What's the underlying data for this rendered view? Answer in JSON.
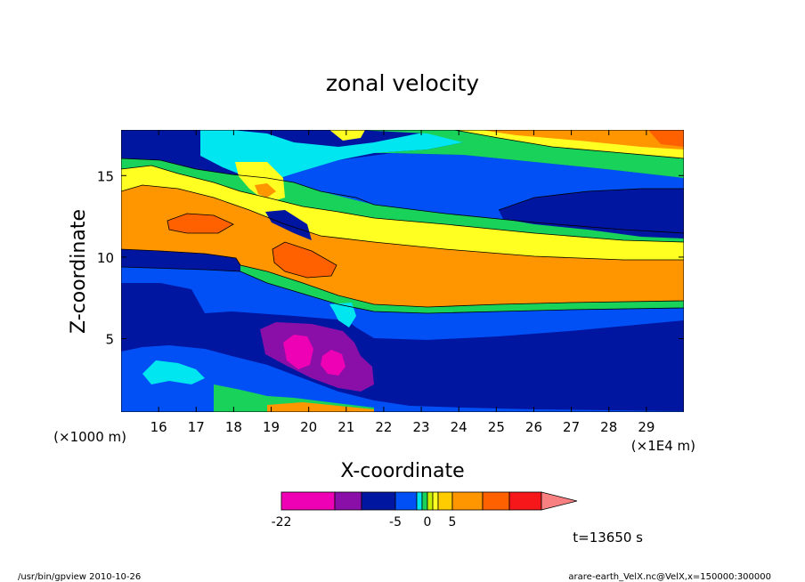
{
  "chart_data": {
    "type": "heatmap",
    "title": "zonal velocity",
    "xlabel": "X-coordinate",
    "ylabel": "Z-coordinate",
    "x_unit_label": "(×1E4 m)",
    "y_unit_label": "(×1000 m)",
    "xlim": [
      15.0,
      30.0
    ],
    "ylim": [
      0.5,
      17.8
    ],
    "x_ticks": [
      "16",
      "17",
      "18",
      "19",
      "20",
      "21",
      "22",
      "23",
      "24",
      "25",
      "26",
      "27",
      "28",
      "29"
    ],
    "y_ticks": [
      "5",
      "10",
      "15"
    ],
    "colorbar": {
      "levels": [
        -22,
        -17,
        -11,
        -5,
        -3,
        -1,
        0,
        1,
        2,
        5,
        8,
        12,
        16
      ],
      "colors": [
        "#ee00b4",
        "#8a0fa8",
        "#0016a0",
        "#0050f5",
        "#00e6f0",
        "#19d25a",
        "#c8f000",
        "#ffff22",
        "#ffcc00",
        "#ff9600",
        "#ff6000",
        "#f5171a",
        "#f88080"
      ],
      "tick_labels": [
        "-22",
        "-5",
        "0",
        "5"
      ],
      "extend": "max"
    },
    "time_label": "t=13650 s",
    "footer_left": "/usr/bin/gpview   2010-10-26",
    "footer_right": "arare-earth_VelX.nc@VelX,x=150000:300000"
  }
}
